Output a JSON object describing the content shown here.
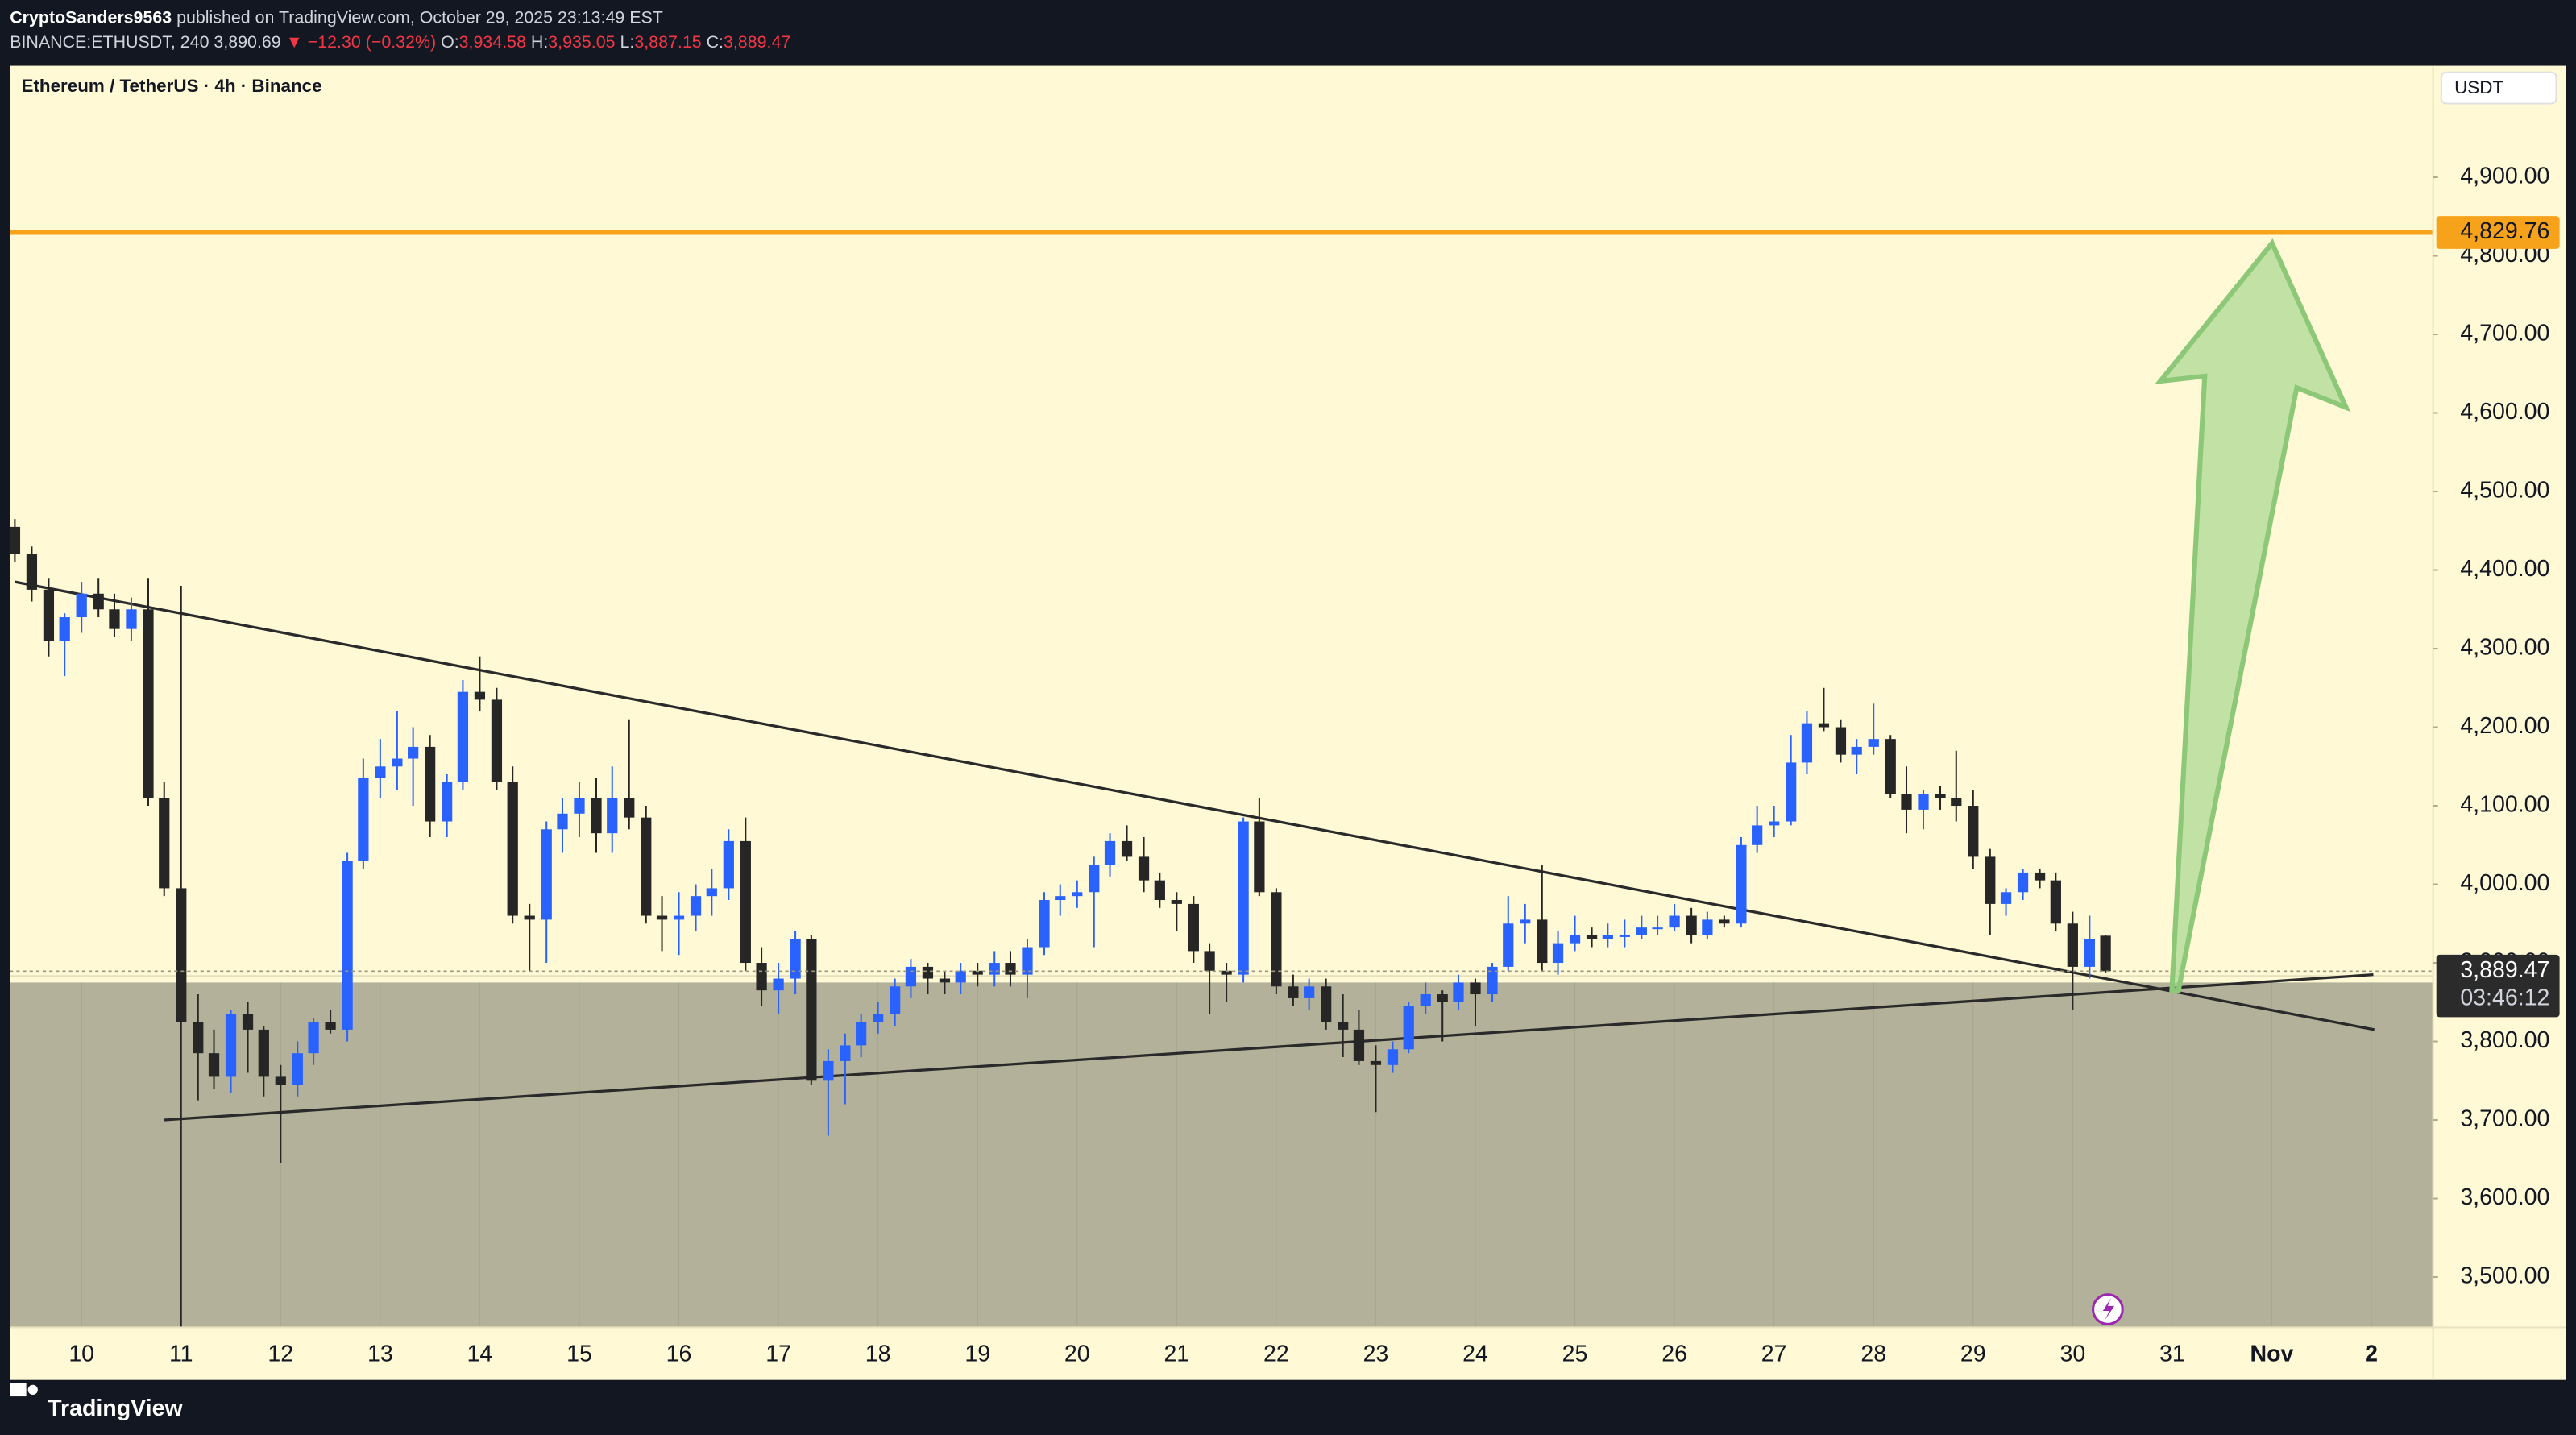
{
  "header": {
    "author": "CryptoSanders9563",
    "published": "published on TradingView.com, October 29, 2025 23:13:49 EST",
    "symbol": "BINANCE:ETHUSDT, 240",
    "last": "3,890.69",
    "change": "▼ −12.30 (−0.32%)",
    "ohlc": [
      {
        "label": "O:",
        "value": "3,934.58"
      },
      {
        "label": "H:",
        "value": "3,935.05"
      },
      {
        "label": "L:",
        "value": "3,887.15"
      },
      {
        "label": "C:",
        "value": "3,889.47"
      }
    ]
  },
  "brand": "TradingView",
  "chart_data": {
    "type": "candlestick",
    "title": "Ethereum / TetherUS · 4h · Binance",
    "currency": "USDT",
    "up_color": "#2962ff",
    "down_color": "#262626",
    "x": [
      9.33,
      9.5,
      9.67,
      9.83,
      10,
      10.17,
      10.33,
      10.5,
      10.67,
      10.83,
      11,
      11.17,
      11.33,
      11.5,
      11.67,
      11.83,
      12,
      12.17,
      12.33,
      12.5,
      12.67,
      12.83,
      13,
      13.17,
      13.33,
      13.5,
      13.67,
      13.83,
      14,
      14.17,
      14.33,
      14.5,
      14.67,
      14.83,
      15,
      15.17,
      15.33,
      15.5,
      15.67,
      15.83,
      16,
      16.17,
      16.33,
      16.5,
      16.67,
      16.83,
      17,
      17.17,
      17.33,
      17.5,
      17.67,
      17.83,
      18,
      18.17,
      18.33,
      18.5,
      18.67,
      18.83,
      19,
      19.17,
      19.33,
      19.5,
      19.67,
      19.83,
      20,
      20.17,
      20.33,
      20.5,
      20.67,
      20.83,
      21,
      21.17,
      21.33,
      21.5,
      21.67,
      21.83,
      22,
      22.17,
      22.33,
      22.5,
      22.67,
      22.83,
      23,
      23.17,
      23.33,
      23.5,
      23.67,
      23.83,
      24,
      24.17,
      24.33,
      24.5,
      24.67,
      24.83,
      25,
      25.17,
      25.33,
      25.5,
      25.67,
      25.83,
      26,
      26.17,
      26.33,
      26.5,
      26.67,
      26.83,
      27,
      27.17,
      27.33,
      27.5,
      27.67,
      27.83,
      28,
      28.17,
      28.33,
      28.5,
      28.67,
      28.83,
      29,
      29.17,
      29.33,
      29.5,
      29.67,
      29.83,
      30,
      30.17,
      30.33
    ],
    "open": [
      4455,
      4420,
      4375,
      4310,
      4340,
      4370,
      4350,
      4325,
      4350,
      4110,
      3995,
      3825,
      3785,
      3755,
      3835,
      3815,
      3755,
      3745,
      3785,
      3825,
      3815,
      4030,
      4135,
      4150,
      4160,
      4175,
      4080,
      4130,
      4245,
      4235,
      4130,
      3960,
      3955,
      4070,
      4090,
      4110,
      4065,
      4110,
      4085,
      3960,
      3955,
      3960,
      3985,
      3995,
      4055,
      3900,
      3865,
      3880,
      3930,
      3750,
      3775,
      3795,
      3825,
      3835,
      3870,
      3895,
      3880,
      3875,
      3890,
      3885,
      3900,
      3885,
      3920,
      3980,
      3985,
      3990,
      4025,
      4055,
      4035,
      4005,
      3980,
      3975,
      3915,
      3890,
      3885,
      4080,
      3990,
      3870,
      3855,
      3870,
      3825,
      3815,
      3775,
      3770,
      3790,
      3845,
      3860,
      3850,
      3875,
      3860,
      3895,
      3950,
      3955,
      3900,
      3925,
      3935,
      3930,
      3935,
      3935,
      3945,
      3945,
      3960,
      3935,
      3955,
      3950,
      4050,
      4075,
      4080,
      4155,
      4205,
      4200,
      4165,
      4175,
      4185,
      4115,
      4095,
      4115,
      4110,
      4100,
      4035,
      3975,
      3990,
      4015,
      4005,
      3950,
      3895,
      3934.58
    ],
    "high": [
      4465,
      4430,
      4390,
      4345,
      4385,
      4390,
      4370,
      4365,
      4390,
      4130,
      4380,
      3860,
      3815,
      3840,
      3850,
      3820,
      3770,
      3800,
      3830,
      3840,
      4040,
      4160,
      4185,
      4220,
      4200,
      4190,
      4140,
      4260,
      4290,
      4250,
      4150,
      3975,
      4080,
      4110,
      4130,
      4135,
      4150,
      4210,
      4100,
      3985,
      3990,
      4000,
      4020,
      4070,
      4085,
      3920,
      3900,
      3940,
      3935,
      3790,
      3810,
      3835,
      3850,
      3880,
      3905,
      3900,
      3890,
      3900,
      3900,
      3915,
      3915,
      3930,
      3990,
      4000,
      4005,
      4035,
      4065,
      4075,
      4060,
      4015,
      3990,
      3985,
      3925,
      3900,
      4085,
      4110,
      3995,
      3885,
      3880,
      3880,
      3860,
      3840,
      3795,
      3800,
      3850,
      3875,
      3865,
      3885,
      3880,
      3900,
      3985,
      3975,
      4025,
      3940,
      3960,
      3945,
      3950,
      3955,
      3960,
      3960,
      3975,
      3970,
      3965,
      3960,
      4060,
      4100,
      4100,
      4190,
      4220,
      4250,
      4210,
      4185,
      4230,
      4190,
      4150,
      4120,
      4125,
      4170,
      4120,
      4045,
      3995,
      4020,
      4020,
      4015,
      3965,
      3960,
      3935.05
    ],
    "low": [
      4410,
      4360,
      4290,
      4265,
      4320,
      4340,
      4315,
      4310,
      4100,
      3985,
      3435,
      3725,
      3740,
      3735,
      3760,
      3730,
      3645,
      3730,
      3770,
      3810,
      3800,
      4020,
      4110,
      4120,
      4100,
      4060,
      4060,
      4120,
      4220,
      4120,
      3950,
      3890,
      3900,
      4040,
      4060,
      4040,
      4040,
      4070,
      3950,
      3915,
      3910,
      3940,
      3960,
      3980,
      3890,
      3845,
      3835,
      3860,
      3745,
      3680,
      3720,
      3780,
      3810,
      3820,
      3855,
      3860,
      3860,
      3860,
      3870,
      3870,
      3870,
      3855,
      3910,
      3960,
      3970,
      3920,
      4010,
      4030,
      3990,
      3970,
      3940,
      3900,
      3835,
      3850,
      3875,
      3985,
      3860,
      3845,
      3840,
      3815,
      3780,
      3770,
      3710,
      3760,
      3785,
      3835,
      3800,
      3840,
      3820,
      3850,
      3890,
      3925,
      3890,
      3885,
      3915,
      3920,
      3920,
      3920,
      3930,
      3935,
      3940,
      3925,
      3930,
      3945,
      3945,
      4040,
      4060,
      4075,
      4140,
      4195,
      4155,
      4140,
      4165,
      4110,
      4065,
      4070,
      4095,
      4080,
      4020,
      3935,
      3960,
      3980,
      3995,
      3940,
      3840,
      3880,
      3887.15
    ],
    "close": [
      4420,
      4375,
      4310,
      4340,
      4370,
      4350,
      4325,
      4350,
      4110,
      3995,
      3825,
      3785,
      3755,
      3835,
      3815,
      3755,
      3745,
      3785,
      3825,
      3815,
      4030,
      4135,
      4150,
      4160,
      4175,
      4080,
      4130,
      4245,
      4235,
      4130,
      3960,
      3955,
      4070,
      4090,
      4110,
      4065,
      4110,
      4085,
      3960,
      3955,
      3960,
      3985,
      3995,
      4055,
      3900,
      3865,
      3880,
      3930,
      3750,
      3775,
      3795,
      3825,
      3835,
      3870,
      3895,
      3880,
      3875,
      3890,
      3885,
      3900,
      3885,
      3920,
      3980,
      3985,
      3990,
      4025,
      4055,
      4035,
      4005,
      3980,
      3975,
      3915,
      3890,
      3885,
      4080,
      3990,
      3870,
      3855,
      3870,
      3825,
      3815,
      3775,
      3770,
      3790,
      3845,
      3860,
      3850,
      3875,
      3860,
      3895,
      3950,
      3955,
      3900,
      3925,
      3935,
      3930,
      3935,
      3935,
      3945,
      3945,
      3960,
      3935,
      3955,
      3950,
      4050,
      4075,
      4080,
      4155,
      4205,
      4200,
      4165,
      4175,
      4185,
      4115,
      4095,
      4115,
      4110,
      4100,
      4035,
      3975,
      3990,
      4015,
      4005,
      3950,
      3895,
      3930,
      3889.47
    ],
    "xlim": [
      9.28,
      33.62
    ],
    "ylim": [
      3436,
      5042
    ],
    "xticks": [
      10,
      11,
      12,
      13,
      14,
      15,
      16,
      17,
      18,
      19,
      20,
      21,
      22,
      23,
      24,
      25,
      26,
      27,
      28,
      29,
      30,
      31,
      {
        "value": 32,
        "label": "Nov"
      },
      {
        "value": 33,
        "label": "2"
      }
    ],
    "yticks": [
      {
        "value": 3500,
        "label": "3,500.00"
      },
      {
        "value": 3600,
        "label": "3,600.00"
      },
      {
        "value": 3700,
        "label": "3,700.00"
      },
      {
        "value": 3800,
        "label": "3,800.00"
      },
      {
        "value": 3900,
        "label": "3,900.00"
      },
      {
        "value": 4000,
        "label": "4,000.00"
      },
      {
        "value": 4100,
        "label": "4,100.00"
      },
      {
        "value": 4200,
        "label": "4,200.00"
      },
      {
        "value": 4300,
        "label": "4,300.00"
      },
      {
        "value": 4400,
        "label": "4,400.00"
      },
      {
        "value": 4500,
        "label": "4,500.00"
      },
      {
        "value": 4600,
        "label": "4,600.00"
      },
      {
        "value": 4700,
        "label": "4,700.00"
      },
      {
        "value": 4800,
        "label": "4,800.00"
      },
      {
        "value": 4900,
        "label": "4,900.00"
      }
    ],
    "level": {
      "value": 4829.76,
      "label": "4,829.76",
      "color": "#f7a21b"
    },
    "last_price": {
      "label": "3,889.47",
      "countdown": "03:46:12"
    },
    "zone": {
      "top": 3875,
      "color": "#b3b199"
    },
    "trendlines": [
      {
        "from": [
          9.33,
          4385
        ],
        "to": [
          33.03,
          3815
        ]
      },
      {
        "from": [
          10.83,
          3700
        ],
        "to": [
          33.02,
          3885
        ]
      }
    ]
  }
}
